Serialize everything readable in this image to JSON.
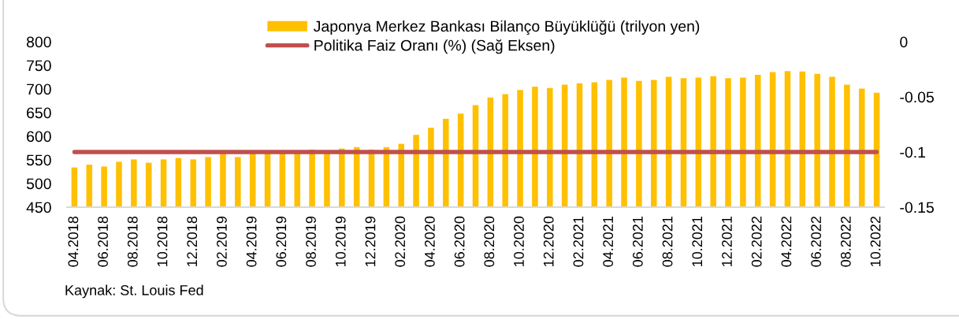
{
  "chart_data": {
    "type": "bar",
    "categories": [
      "04.2018",
      null,
      "06.2018",
      null,
      "08.2018",
      null,
      "10.2018",
      null,
      "12.2018",
      null,
      "02.2019",
      null,
      "04.2019",
      null,
      "06.2019",
      null,
      "08.2019",
      null,
      "10.2019",
      null,
      "12.2019",
      null,
      "02.2020",
      null,
      "04.2020",
      null,
      "06.2020",
      null,
      "08.2020",
      null,
      "10.2020",
      null,
      "12.2020",
      null,
      "02.2021",
      null,
      "04.2021",
      null,
      "06.2021",
      null,
      "08.2021",
      null,
      "10.2021",
      null,
      "12.2021",
      null,
      "02.2022",
      null,
      "04.2022",
      null,
      "06.2022",
      null,
      "08.2022",
      null,
      "10.2022"
    ],
    "series": [
      {
        "name": "Japonya Merkez Bankası Bilanço Büyüklüğü (trilyon yen)",
        "color": "#ffc000",
        "values": [
          534,
          540,
          536,
          546,
          551,
          544,
          551,
          554,
          551,
          556,
          566,
          556,
          566,
          566,
          566,
          566,
          572,
          566,
          574,
          577,
          572,
          577,
          584,
          603,
          618,
          637,
          648,
          666,
          682,
          689,
          698,
          705,
          702,
          709,
          712,
          714,
          719,
          724,
          717,
          719,
          726,
          723,
          724,
          727,
          723,
          724,
          730,
          736,
          738,
          737,
          732,
          726,
          709,
          701,
          692
        ]
      },
      {
        "name": "Politika Faiz Oranı (%) (Sağ Eksen)",
        "type": "line",
        "axis": "y2",
        "color": "#c0504d",
        "values": [
          -0.1,
          -0.1,
          -0.1,
          -0.1,
          -0.1,
          -0.1,
          -0.1,
          -0.1,
          -0.1,
          -0.1,
          -0.1,
          -0.1,
          -0.1,
          -0.1,
          -0.1,
          -0.1,
          -0.1,
          -0.1,
          -0.1,
          -0.1,
          -0.1,
          -0.1,
          -0.1,
          -0.1,
          -0.1,
          -0.1,
          -0.1,
          -0.1,
          -0.1,
          -0.1,
          -0.1,
          -0.1,
          -0.1,
          -0.1,
          -0.1,
          -0.1,
          -0.1,
          -0.1,
          -0.1,
          -0.1,
          -0.1,
          -0.1,
          -0.1,
          -0.1,
          -0.1,
          -0.1,
          -0.1,
          -0.1,
          -0.1,
          -0.1,
          -0.1,
          -0.1,
          -0.1,
          -0.1,
          -0.1
        ]
      }
    ],
    "ylim": [
      450,
      800
    ],
    "yticks": [
      450,
      500,
      550,
      600,
      650,
      700,
      750,
      800
    ],
    "y2lim": [
      -0.15,
      0
    ],
    "y2ticks": [
      -0.15,
      -0.1,
      -0.05,
      0
    ],
    "legend": "top",
    "annotations": [
      "Kaynak: St. Louis Fed"
    ]
  }
}
